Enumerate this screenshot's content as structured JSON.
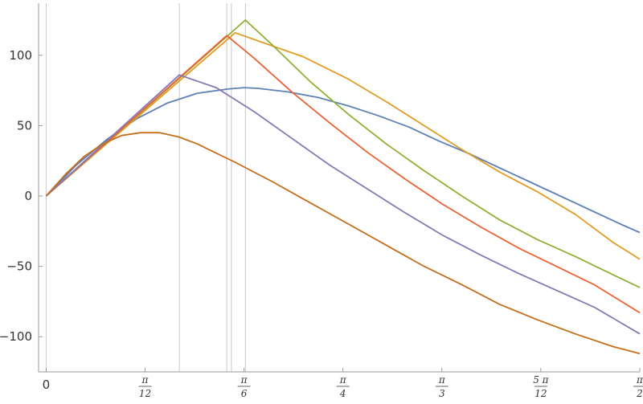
{
  "chart_data": {
    "type": "line",
    "title": "",
    "xlabel": "",
    "ylabel": "",
    "xlim": [
      -0.02,
      1.5708
    ],
    "ylim": [
      -125,
      137
    ],
    "grid": false,
    "legend": "none",
    "x_ticks": [
      {
        "value": 0,
        "label": "0"
      },
      {
        "value": 0.261799,
        "num": "π",
        "den": "12"
      },
      {
        "value": 0.523599,
        "num": "π",
        "den": "6"
      },
      {
        "value": 0.785398,
        "num": "π",
        "den": "4"
      },
      {
        "value": 1.047198,
        "num": "π",
        "den": "3"
      },
      {
        "value": 1.308997,
        "num": "5 π",
        "den": "12"
      },
      {
        "value": 1.570796,
        "num": "π",
        "den": "2"
      }
    ],
    "y_ticks": [
      {
        "value": 100,
        "label": "100"
      },
      {
        "value": 50,
        "label": "50"
      },
      {
        "value": 0,
        "label": "0"
      },
      {
        "value": -50,
        "label": "−50"
      },
      {
        "value": -100,
        "label": "−100"
      }
    ],
    "vertical_lines": [
      0,
      0.3524,
      0.4778,
      0.4902,
      0.5273
    ],
    "series": [
      {
        "color": "#5e81b5",
        "x": [
          0,
          0.08,
          0.16,
          0.24,
          0.32,
          0.4,
          0.48,
          0.5236,
          0.56,
          0.64,
          0.72,
          0.8,
          0.88,
          0.96,
          1.04,
          1.12,
          1.2,
          1.28,
          1.36,
          1.44,
          1.52,
          1.5708
        ],
        "y": [
          0,
          22,
          40,
          55,
          66,
          73,
          76,
          77,
          76.5,
          74,
          70,
          64,
          57,
          49,
          39,
          30,
          20,
          10,
          0,
          -10,
          -20,
          -26
        ]
      },
      {
        "color": "#e19c24",
        "x": [
          0,
          0.5,
          0.68,
          0.8,
          0.9,
          1.0,
          1.1,
          1.2,
          1.3,
          1.4,
          1.5,
          1.5708
        ],
        "y": [
          0,
          116,
          99,
          83,
          67,
          50,
          33,
          17,
          3,
          -13,
          -33,
          -45
        ]
      },
      {
        "color": "#8fb032",
        "x": [
          0,
          0.5273,
          0.6,
          0.7,
          0.8,
          0.9,
          1.0,
          1.1,
          1.2,
          1.3,
          1.4,
          1.5,
          1.5708
        ],
        "y": [
          0,
          125,
          107,
          81,
          58,
          37,
          18,
          0,
          -17,
          -31,
          -43,
          -56,
          -65
        ]
      },
      {
        "color": "#eb6235",
        "x": [
          0,
          0.4778,
          0.55,
          0.65,
          0.75,
          0.85,
          0.95,
          1.05,
          1.15,
          1.25,
          1.35,
          1.45,
          1.5708
        ],
        "y": [
          0,
          114,
          98,
          74,
          52,
          31,
          12,
          -6,
          -22,
          -37,
          -50,
          -63,
          -83
        ]
      },
      {
        "color": "#8778b3",
        "x": [
          0,
          0.3524,
          0.45,
          0.55,
          0.65,
          0.75,
          0.85,
          0.95,
          1.05,
          1.15,
          1.25,
          1.35,
          1.45,
          1.5708
        ],
        "y": [
          0,
          86,
          77,
          60,
          41,
          22,
          5,
          -12,
          -28,
          -42,
          -55,
          -67,
          -79,
          -98
        ]
      },
      {
        "color": "#c56e1a",
        "x": [
          0,
          0.05,
          0.1,
          0.15,
          0.2,
          0.25,
          0.3,
          0.35,
          0.4,
          0.5,
          0.6,
          0.7,
          0.8,
          0.9,
          1.0,
          1.1,
          1.2,
          1.3,
          1.4,
          1.5,
          1.5708
        ],
        "y": [
          0,
          15,
          28,
          37,
          43,
          45,
          45,
          42,
          37,
          24,
          10,
          -5,
          -20,
          -35,
          -50,
          -63,
          -77,
          -88,
          -98,
          -107,
          -112
        ]
      }
    ]
  }
}
